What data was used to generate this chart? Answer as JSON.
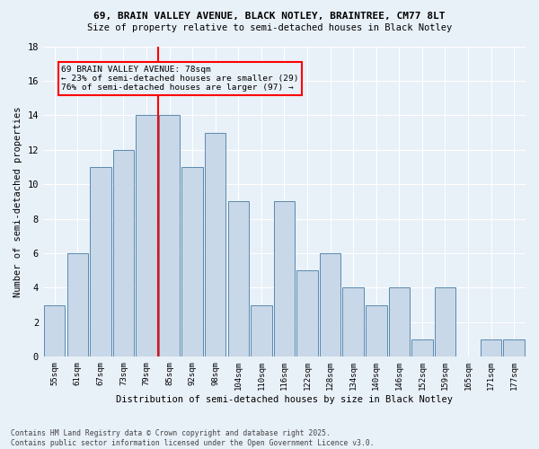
{
  "title1": "69, BRAIN VALLEY AVENUE, BLACK NOTLEY, BRAINTREE, CM77 8LT",
  "title2": "Size of property relative to semi-detached houses in Black Notley",
  "xlabel": "Distribution of semi-detached houses by size in Black Notley",
  "ylabel": "Number of semi-detached properties",
  "categories": [
    "55sqm",
    "61sqm",
    "67sqm",
    "73sqm",
    "79sqm",
    "85sqm",
    "92sqm",
    "98sqm",
    "104sqm",
    "110sqm",
    "116sqm",
    "122sqm",
    "128sqm",
    "134sqm",
    "140sqm",
    "146sqm",
    "152sqm",
    "159sqm",
    "165sqm",
    "171sqm",
    "177sqm"
  ],
  "values": [
    3,
    6,
    11,
    12,
    14,
    14,
    11,
    13,
    9,
    3,
    9,
    5,
    6,
    4,
    3,
    4,
    1,
    4,
    0,
    1,
    1
  ],
  "bar_color": "#c8d8e8",
  "bar_edge_color": "#5a8ab0",
  "vline_x_index": 4,
  "vline_color": "red",
  "annotation_title": "69 BRAIN VALLEY AVENUE: 78sqm",
  "annotation_line1": "← 23% of semi-detached houses are smaller (29)",
  "annotation_line2": "76% of semi-detached houses are larger (97) →",
  "annotation_box_color": "red",
  "ylim": [
    0,
    18
  ],
  "yticks": [
    0,
    2,
    4,
    6,
    8,
    10,
    12,
    14,
    16,
    18
  ],
  "bg_color": "#e8f0f8",
  "grid_color": "#ffffff",
  "footer1": "Contains HM Land Registry data © Crown copyright and database right 2025.",
  "footer2": "Contains public sector information licensed under the Open Government Licence v3.0."
}
